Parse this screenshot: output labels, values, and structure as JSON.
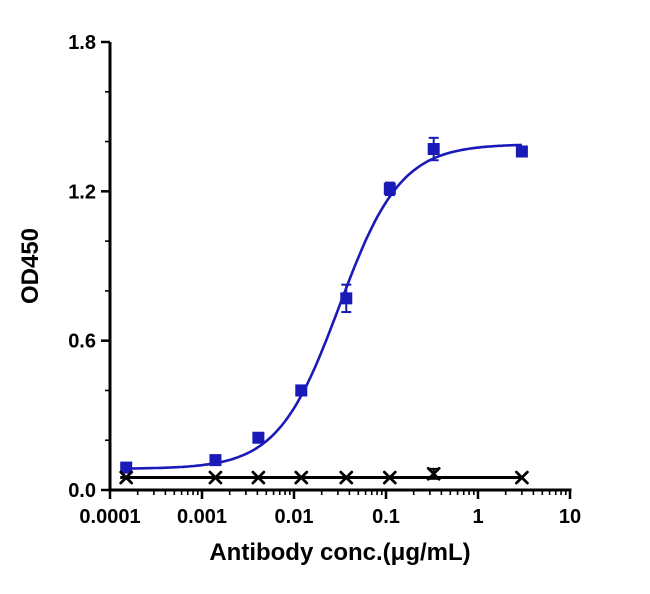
{
  "chart_data": {
    "type": "scatter",
    "xlabel": "Antibody conc.(μg/mL)",
    "ylabel": "OD450",
    "x_scale": "log",
    "xlim": [
      0.0001,
      10
    ],
    "ylim": [
      0,
      1.8
    ],
    "x_major_ticks": [
      0.0001,
      0.001,
      0.01,
      0.1,
      1,
      10
    ],
    "x_tick_labels": [
      "0.0001",
      "0.001",
      "0.01",
      "0.1",
      "1",
      "10"
    ],
    "x_minor_ticks": "log-decades",
    "y_major_ticks": [
      0,
      0.6,
      1.2,
      1.8
    ],
    "y_tick_labels": [
      "0.0",
      "0.6",
      "1.2",
      "1.8"
    ],
    "y_minor_step": 0.2,
    "grid": false,
    "legend": "none",
    "axis_color": "#000000",
    "series": [
      {
        "name": "antibody-blue-squares",
        "marker": "filled-square",
        "color": "#1a1ab8",
        "x": [
          0.00015,
          0.0014,
          0.0041,
          0.012,
          0.037,
          0.11,
          0.33,
          3.0
        ],
        "y": [
          0.09,
          0.12,
          0.21,
          0.4,
          0.77,
          1.21,
          1.37,
          1.36
        ],
        "yerr": [
          0.012,
          0.012,
          0.015,
          0.02,
          0.055,
          0.025,
          0.045,
          0.02
        ],
        "fit": {
          "type": "4PL",
          "bottom": 0.085,
          "top": 1.39,
          "ec50": 0.031,
          "hill": 1.3
        }
      },
      {
        "name": "control-black-cross",
        "marker": "x-cross",
        "color": "#000000",
        "x": [
          0.00015,
          0.0014,
          0.0041,
          0.012,
          0.037,
          0.11,
          0.33,
          3.0
        ],
        "y": [
          0.05,
          0.05,
          0.05,
          0.05,
          0.05,
          0.05,
          0.065,
          0.05
        ],
        "yerr": [
          0,
          0,
          0,
          0,
          0,
          0,
          0.02,
          0
        ],
        "fit": {
          "type": "flat",
          "value": 0.05
        }
      }
    ]
  }
}
